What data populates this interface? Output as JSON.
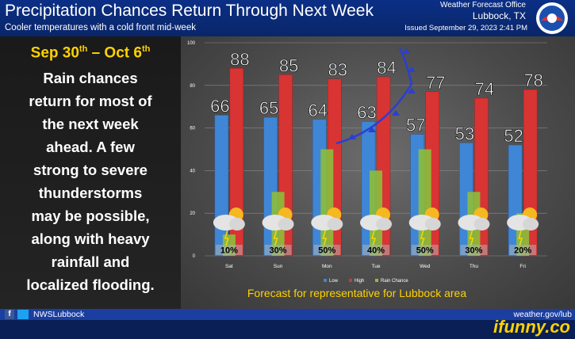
{
  "header": {
    "title": "Precipitation Chances Return Through Next Week",
    "subtitle": "Cooler temperatures with a cold front mid-week",
    "office": "Weather Forecast Office",
    "city": "Lubbock, TX",
    "issued": "Issued September 29, 2023 2:41 PM"
  },
  "left_panel": {
    "date_range_start": "Sep 30",
    "date_range_start_sup": "th",
    "date_range_sep": " – Oct 6",
    "date_range_end_sup": "th",
    "message_lines": [
      "Rain chances",
      "return for most of",
      "the next week",
      "ahead. A few",
      "strong to severe",
      "thunderstorms",
      "may be possible,",
      "along with heavy",
      "rainfall and",
      "localized flooding."
    ]
  },
  "chart_data": {
    "type": "bar",
    "categories": [
      "Sat",
      "Sun",
      "Mon",
      "Tue",
      "Wed",
      "Thu",
      "Fri"
    ],
    "series": [
      {
        "name": "Low",
        "values": [
          66,
          65,
          64,
          63,
          57,
          53,
          52
        ],
        "color": "#3f86d6"
      },
      {
        "name": "High",
        "values": [
          88,
          85,
          83,
          84,
          77,
          74,
          78
        ],
        "color": "#d83434"
      },
      {
        "name": "Rain Chance",
        "values": [
          10,
          30,
          50,
          40,
          50,
          30,
          20
        ],
        "color": "#8cbe3c"
      }
    ],
    "rain_labels": [
      "10%",
      "30%",
      "50%",
      "40%",
      "50%",
      "30%",
      "20%"
    ],
    "ylim": [
      0,
      100
    ],
    "yticks": [
      0,
      20,
      40,
      60,
      80,
      100
    ],
    "grid": true,
    "legend_position": "bottom",
    "annotation": "Forecast for representative for Lubbock area",
    "weather_icon": "thunderstorm-icon",
    "front_icon": "cold-front-icon"
  },
  "footer": {
    "handle": "NWSLubbock",
    "url": "weather.gov/lub",
    "watermark": "ifunny.co"
  }
}
